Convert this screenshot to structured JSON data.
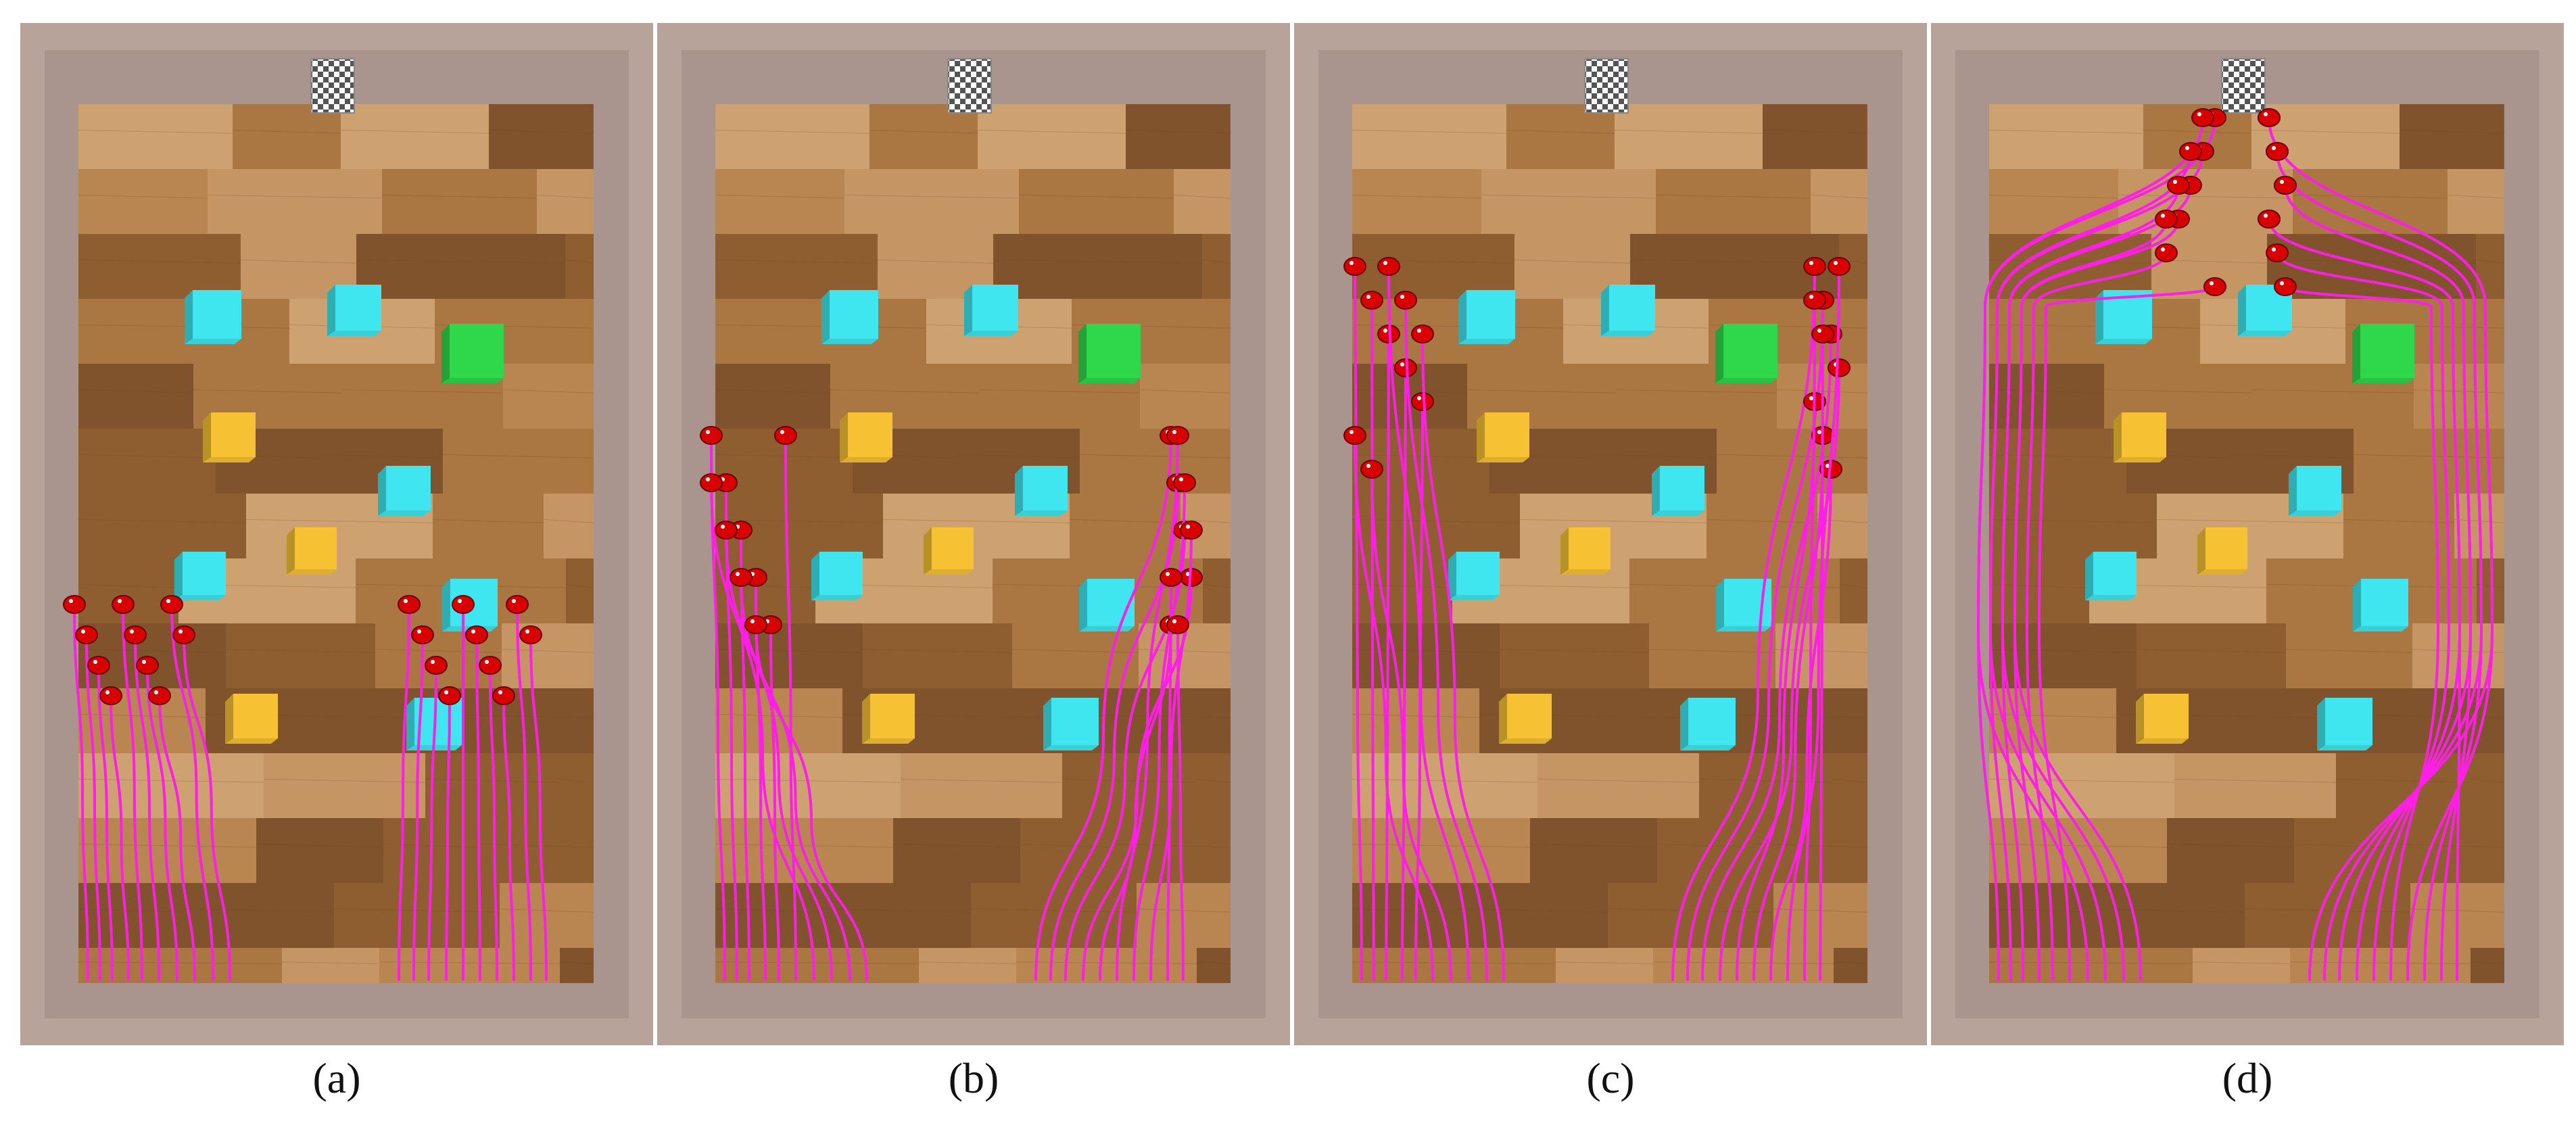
{
  "figure": {
    "panels": [
      {
        "id": "a",
        "caption": "(a)",
        "stage": 0
      },
      {
        "id": "b",
        "caption": "(b)",
        "stage": 1
      },
      {
        "id": "c",
        "caption": "(c)",
        "stage": 2
      },
      {
        "id": "d",
        "caption": "(d)",
        "stage": 3
      }
    ],
    "scene": {
      "goal_marker": "checkered-flag",
      "obstacles": [
        {
          "kind": "cyan-cube",
          "color": "#3fe6ef"
        },
        {
          "kind": "cyan-cube",
          "color": "#3fe6ef"
        },
        {
          "kind": "green-cube",
          "color": "#2fd84a"
        },
        {
          "kind": "yellow-cube",
          "color": "#f6c234"
        },
        {
          "kind": "cyan-cube",
          "color": "#3fe6ef"
        },
        {
          "kind": "cyan-cube",
          "color": "#3fe6ef"
        },
        {
          "kind": "yellow-cube",
          "color": "#f6c234"
        },
        {
          "kind": "cyan-cube",
          "color": "#3fe6ef"
        },
        {
          "kind": "yellow-cube",
          "color": "#f6c234"
        },
        {
          "kind": "cyan-cube",
          "color": "#3fe6ef"
        }
      ],
      "trajectory_color": "#ff1fe6",
      "robot_color": "#d90000",
      "robot_count": 20
    }
  }
}
